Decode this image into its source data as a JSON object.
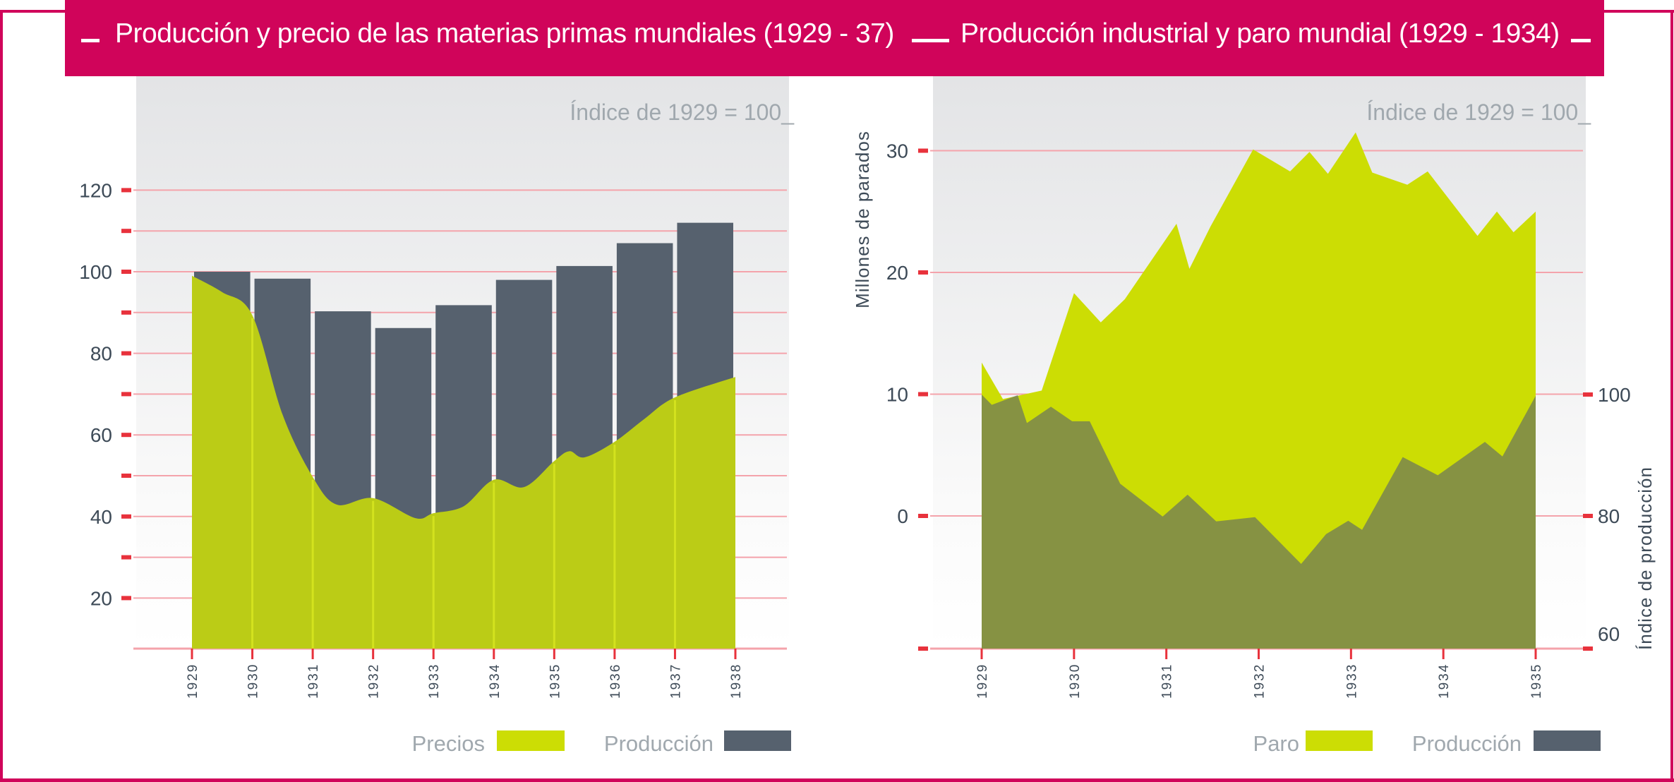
{
  "header": {
    "left_title": "Producción y precio de las materias primas mundiales (1929 - 37)",
    "right_title": "Producción industrial y paro mundial (1929 - 1934)"
  },
  "colors": {
    "brand": "#D0045A",
    "gridline": "#F4A3AB",
    "tick": "#E8323C",
    "precios": "#BBCC16",
    "paro": "#CCDD04",
    "produccion": "#56616E",
    "axis_text": "#3D4A57",
    "note_text": "#A0A8AE"
  },
  "chart_data": [
    {
      "type": "bar",
      "title": "Producción y precio de las materias primas mundiales (1929 - 37)",
      "note": "Índice de 1929 = 100_",
      "x_ticks": [
        "1929",
        "1930",
        "1931",
        "1932",
        "1933",
        "1934",
        "1935",
        "1936",
        "1937",
        "1938"
      ],
      "y_ticks": [
        "20",
        "40",
        "60",
        "80",
        "100",
        "120"
      ],
      "y_minor_ticks": [
        30,
        50,
        70,
        90,
        110
      ],
      "ylim": [
        8,
        130
      ],
      "grid": true,
      "legend_position": "bottom-right",
      "legend": [
        "Precios",
        "Producción"
      ],
      "series": [
        {
          "name": "Producción",
          "type": "bar",
          "categories": [
            "1929",
            "1930",
            "1931",
            "1932",
            "1933",
            "1934",
            "1935",
            "1936",
            "1937"
          ],
          "values": [
            100,
            98.3,
            90.3,
            86.2,
            91.8,
            98,
            101.4,
            107,
            112
          ]
        },
        {
          "name": "Precios",
          "type": "area",
          "x": [
            1929,
            1929.5,
            1930,
            1930.5,
            1931,
            1931.4,
            1932,
            1932.7,
            1933,
            1933.5,
            1934,
            1934.5,
            1935,
            1935.25,
            1935.5,
            1936,
            1936.5,
            1937,
            1938
          ],
          "y": [
            99,
            95,
            89.3,
            65,
            49.7,
            42.9,
            44.5,
            39.6,
            40.8,
            42.5,
            49,
            47.2,
            53.6,
            56,
            54.5,
            58.3,
            64,
            69.2,
            74.2
          ]
        }
      ]
    },
    {
      "type": "area",
      "title": "Producción industrial y paro mundial (1929 - 1934)",
      "note": "Índice de 1929 = 100_",
      "x_ticks": [
        "1929",
        "1930",
        "1931",
        "1932",
        "1933",
        "1934",
        "1935"
      ],
      "y_left_label": "Millones de parados",
      "y_left_ticks": [
        "0",
        "10",
        "20",
        "30"
      ],
      "y_right_label": "Índice de producción",
      "y_right_ticks": [
        "60",
        "80",
        "100"
      ],
      "grid": true,
      "legend_position": "bottom-right",
      "legend": [
        "Paro",
        "Producción"
      ],
      "series": [
        {
          "name": "Paro",
          "axis": "left",
          "x": [
            1929.0,
            1929.23,
            1929.65,
            1930.0,
            1930.29,
            1930.55,
            1931.11,
            1931.25,
            1931.48,
            1931.94,
            1932.34,
            1932.55,
            1932.75,
            1933.05,
            1933.23,
            1933.61,
            1933.83,
            1934.37,
            1934.58,
            1934.76,
            1935.0
          ],
          "y": [
            12.6,
            9.6,
            10.3,
            18.3,
            15.9,
            17.8,
            24.0,
            20.3,
            23.8,
            30.1,
            28.3,
            29.9,
            28.1,
            31.5,
            28.2,
            27.2,
            28.3,
            23.0,
            25.0,
            23.3,
            25.0
          ]
        },
        {
          "name": "Producción",
          "axis": "right",
          "x": [
            1929.0,
            1929.11,
            1929.39,
            1929.49,
            1929.75,
            1929.98,
            1930.17,
            1930.5,
            1930.96,
            1931.23,
            1931.54,
            1931.96,
            1932.46,
            1932.73,
            1932.97,
            1933.12,
            1933.56,
            1933.94,
            1934.45,
            1934.64,
            1935.0
          ],
          "y": [
            100,
            98.3,
            99.9,
            95.3,
            98.0,
            95.6,
            95.6,
            85.3,
            79.9,
            83.5,
            79.1,
            79.8,
            72.1,
            77.0,
            79.2,
            77.7,
            89.7,
            86.7,
            92.2,
            89.8,
            99.8
          ]
        }
      ]
    }
  ]
}
